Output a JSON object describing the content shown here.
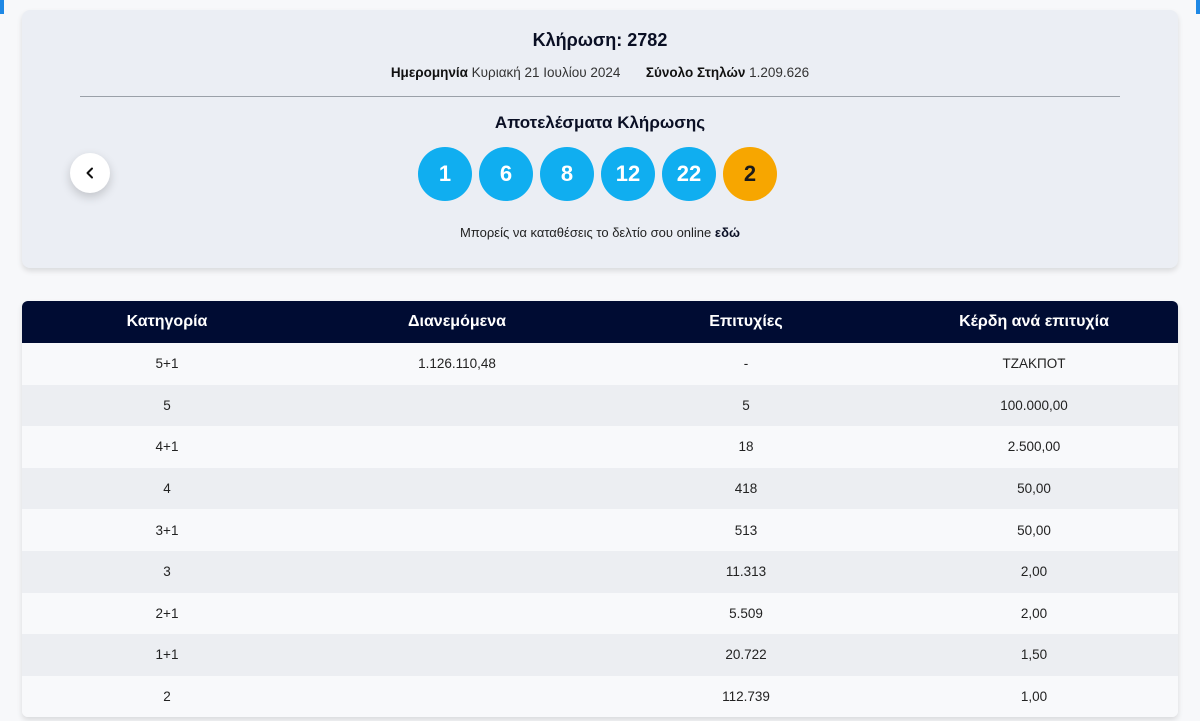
{
  "draw": {
    "title": "Κλήρωση: 2782",
    "date_label": "Ημερομηνία",
    "date_value": "Κυριακή 21 Ιουλίου 2024",
    "columns_label": "Σύνολο Στηλών",
    "columns_value": "1.209.626",
    "results_title": "Αποτελέσματα Κλήρωσης",
    "numbers": [
      "1",
      "6",
      "8",
      "12",
      "22"
    ],
    "joker": "2",
    "online_text": "Μπορείς να καταθέσεις το δελτίο σου online",
    "online_link": "εδώ",
    "prev_icon": "chevron-left-icon"
  },
  "colors": {
    "ball": "#10aef0",
    "joker_ball": "#f7a600",
    "table_header": "#000c33"
  },
  "table": {
    "headers": [
      "Κατηγορία",
      "Διανεμόμενα",
      "Επιτυχίες",
      "Κέρδη ανά επιτυχία"
    ],
    "rows": [
      [
        "5+1",
        "1.126.110,48",
        "-",
        "ΤΖΑΚΠΟΤ"
      ],
      [
        "5",
        "",
        "5",
        "100.000,00"
      ],
      [
        "4+1",
        "",
        "18",
        "2.500,00"
      ],
      [
        "4",
        "",
        "418",
        "50,00"
      ],
      [
        "3+1",
        "",
        "513",
        "50,00"
      ],
      [
        "3",
        "",
        "11.313",
        "2,00"
      ],
      [
        "2+1",
        "",
        "5.509",
        "2,00"
      ],
      [
        "1+1",
        "",
        "20.722",
        "1,50"
      ],
      [
        "2",
        "",
        "112.739",
        "1,00"
      ]
    ]
  }
}
